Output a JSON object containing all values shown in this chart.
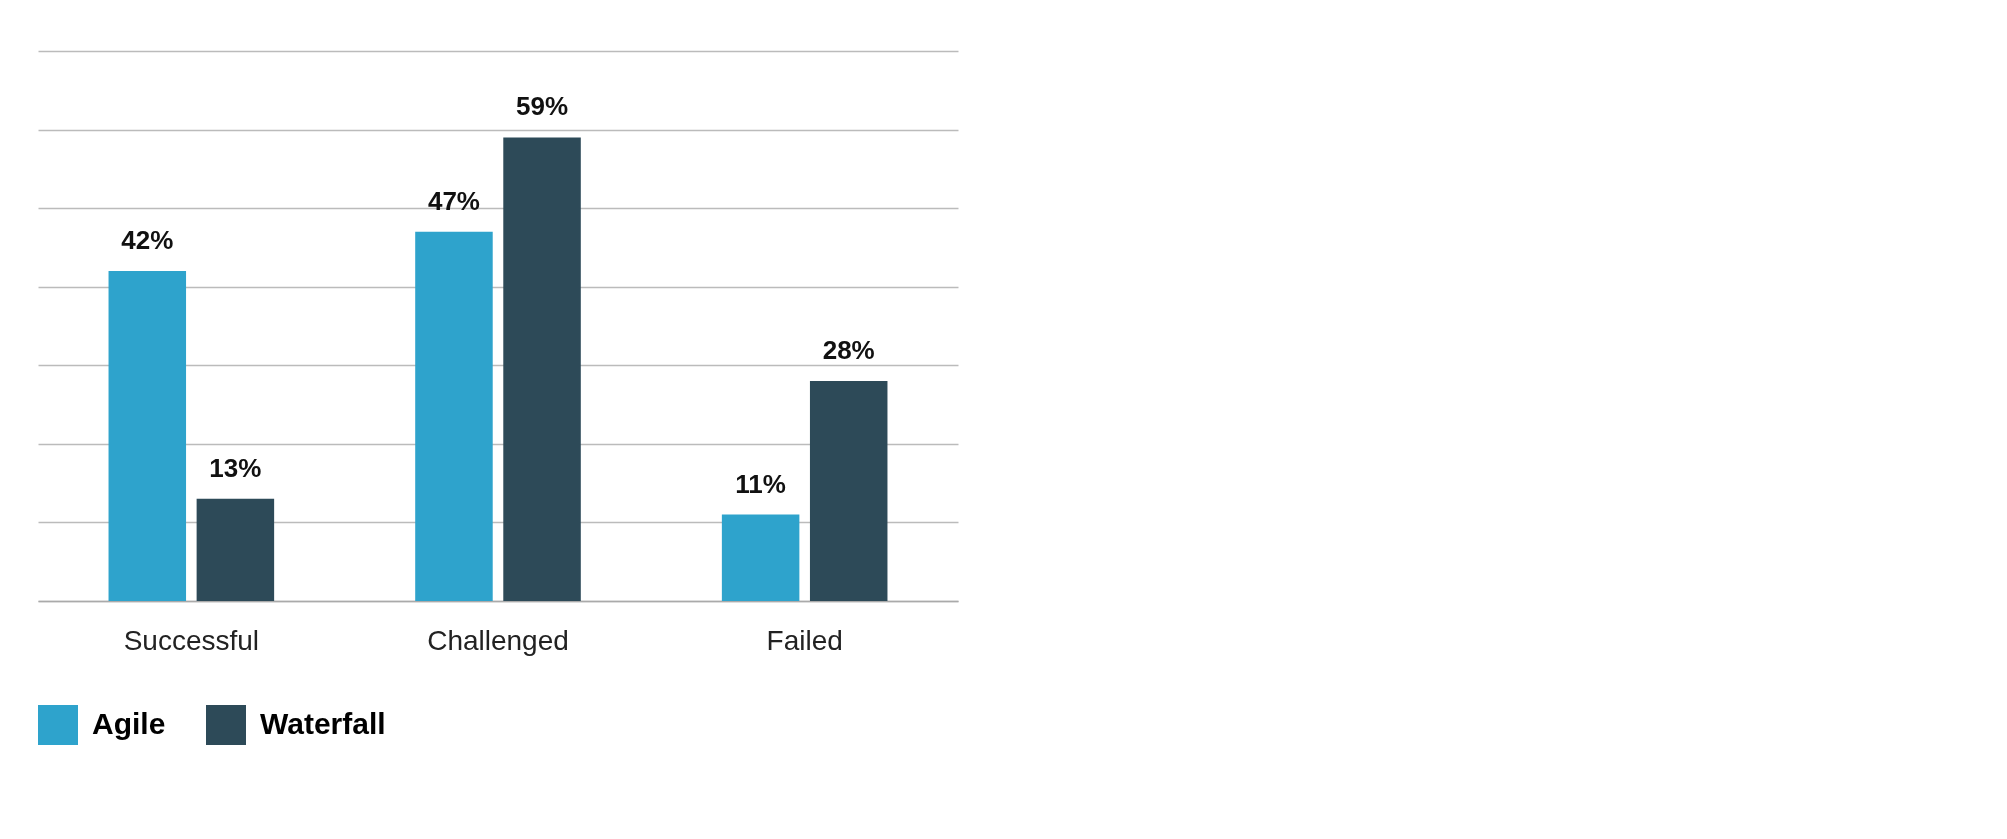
{
  "chart_data": {
    "type": "bar",
    "categories": [
      "Successful",
      "Challenged",
      "Failed"
    ],
    "series": [
      {
        "name": "Agile",
        "color": "#2ea3cc",
        "values": [
          42,
          47,
          11
        ],
        "value_labels": [
          "42%",
          "47%",
          "11%"
        ]
      },
      {
        "name": "Waterfall",
        "color": "#2d4a58",
        "values": [
          13,
          59,
          28
        ],
        "value_labels": [
          "13%",
          "59%",
          "28%"
        ]
      }
    ],
    "ylim": [
      0,
      70
    ],
    "yticks": [
      {
        "value": 0,
        "label": null
      },
      {
        "value": 10,
        "label": null
      },
      {
        "value": 20,
        "label": null
      },
      {
        "value": 30,
        "label": null
      },
      {
        "value": 40,
        "label": null
      },
      {
        "value": 50,
        "label": null
      },
      {
        "value": 60,
        "label": null
      },
      {
        "value": 70,
        "label": null
      }
    ],
    "tick_labels": "x",
    "grid": "y",
    "legend": "bottom"
  }
}
